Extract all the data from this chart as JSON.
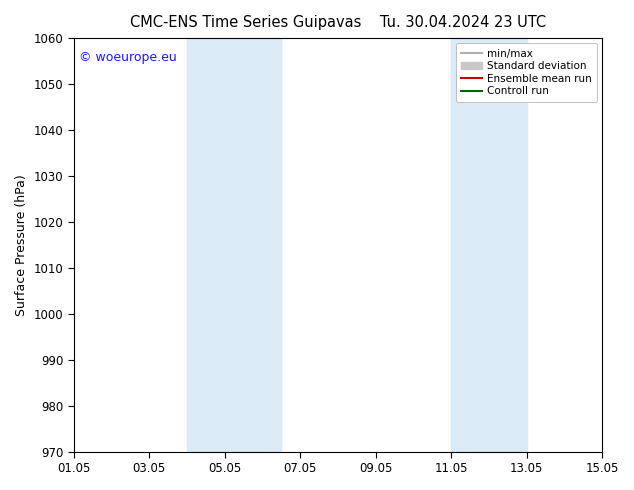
{
  "title_left": "CMC-ENS Time Series Guipavas",
  "title_right": "Tu. 30.04.2024 23 UTC",
  "ylabel": "Surface Pressure (hPa)",
  "ylim": [
    970,
    1060
  ],
  "yticks": [
    970,
    980,
    990,
    1000,
    1010,
    1020,
    1030,
    1040,
    1050,
    1060
  ],
  "xlim": [
    0,
    14
  ],
  "xtick_positions": [
    0,
    2,
    4,
    6,
    8,
    10,
    12,
    14
  ],
  "xtick_labels": [
    "01.05",
    "03.05",
    "05.05",
    "07.05",
    "09.05",
    "11.05",
    "13.05",
    "15.05"
  ],
  "shaded_bands": [
    {
      "x_start": 3.0,
      "x_end": 5.5,
      "color": "#daeaf7"
    },
    {
      "x_start": 10.0,
      "x_end": 12.0,
      "color": "#daeaf7"
    }
  ],
  "watermark_text": "© woeurope.eu",
  "watermark_color": "#1a1aff",
  "legend_entries": [
    {
      "label": "min/max",
      "color": "#b0b0b0",
      "lw": 1.5,
      "type": "line"
    },
    {
      "label": "Standard deviation",
      "color": "#c8c8c8",
      "lw": 6,
      "type": "patch"
    },
    {
      "label": "Ensemble mean run",
      "color": "#cc0000",
      "lw": 1.5,
      "type": "line"
    },
    {
      "label": "Controll run",
      "color": "#006600",
      "lw": 1.5,
      "type": "line"
    }
  ],
  "bg_color": "#ffffff",
  "plot_bg_color": "#ffffff",
  "title_fontsize": 10.5,
  "axis_label_fontsize": 9,
  "tick_fontsize": 8.5,
  "watermark_fontsize": 9
}
